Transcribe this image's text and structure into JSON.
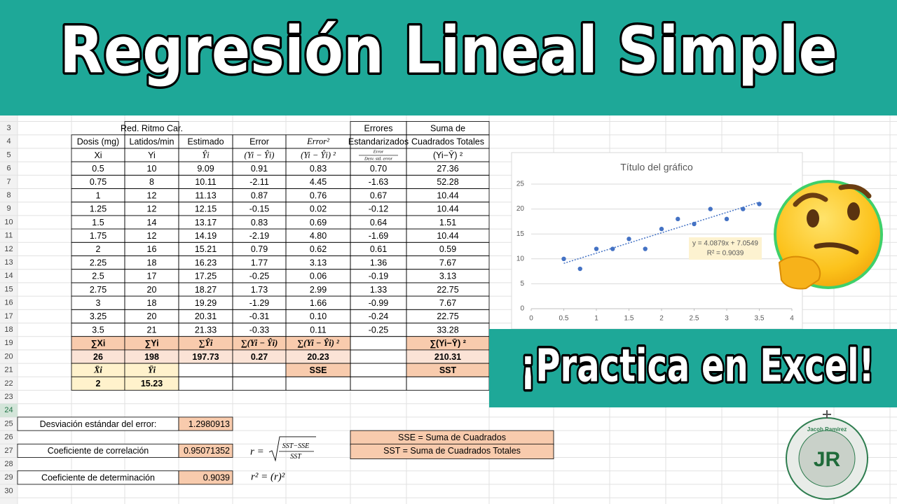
{
  "header": {
    "title": "Regresión Lineal Simple"
  },
  "banner": {
    "text": "¡Practica en Excel!"
  },
  "logo": {
    "name": "Jacob Ramírez",
    "initials": "JR"
  },
  "sheet": {
    "row_numbers": [
      "3",
      "4",
      "5",
      "6",
      "7",
      "8",
      "9",
      "10",
      "11",
      "12",
      "13",
      "14",
      "15",
      "16",
      "17",
      "18",
      "19",
      "20",
      "21",
      "22",
      "23",
      "24",
      "25",
      "26",
      "27",
      "28",
      "29",
      "30"
    ]
  },
  "table": {
    "header_rows": [
      [
        null,
        "Red. Ritmo Car.",
        null,
        null,
        null,
        "Errores",
        "Suma de"
      ],
      [
        "Dosis (mg)",
        "Latidos/min",
        "Estimado",
        "Error",
        "Error²",
        "Estandarizados",
        "Cuadrados Totales"
      ],
      [
        "Xi",
        "Yi",
        "Ŷi",
        "(Yi − Ŷi)",
        "(Yi − Ŷi) ²",
        {
          "numerator": "Error",
          "denominator": "Desv. std. error"
        },
        "(Yi−Ȳ) ²"
      ]
    ],
    "rows": [
      [
        "0.5",
        "10",
        "9.09",
        "0.91",
        "0.83",
        "0.70",
        "27.36"
      ],
      [
        "0.75",
        "8",
        "10.11",
        "-2.11",
        "4.45",
        "-1.63",
        "52.28"
      ],
      [
        "1",
        "12",
        "11.13",
        "0.87",
        "0.76",
        "0.67",
        "10.44"
      ],
      [
        "1.25",
        "12",
        "12.15",
        "-0.15",
        "0.02",
        "-0.12",
        "10.44"
      ],
      [
        "1.5",
        "14",
        "13.17",
        "0.83",
        "0.69",
        "0.64",
        "1.51"
      ],
      [
        "1.75",
        "12",
        "14.19",
        "-2.19",
        "4.80",
        "-1.69",
        "10.44"
      ],
      [
        "2",
        "16",
        "15.21",
        "0.79",
        "0.62",
        "0.61",
        "0.59"
      ],
      [
        "2.25",
        "18",
        "16.23",
        "1.77",
        "3.13",
        "1.36",
        "7.67"
      ],
      [
        "2.5",
        "17",
        "17.25",
        "-0.25",
        "0.06",
        "-0.19",
        "3.13"
      ],
      [
        "2.75",
        "20",
        "18.27",
        "1.73",
        "2.99",
        "1.33",
        "22.75"
      ],
      [
        "3",
        "18",
        "19.29",
        "-1.29",
        "1.66",
        "-0.99",
        "7.67"
      ],
      [
        "3.25",
        "20",
        "20.31",
        "-0.31",
        "0.10",
        "-0.24",
        "22.75"
      ],
      [
        "3.5",
        "21",
        "21.33",
        "-0.33",
        "0.11",
        "-0.25",
        "33.28"
      ]
    ],
    "sum_labels": [
      "∑Xi",
      "∑Yi",
      "∑Ŷi",
      "∑(Yi − Ŷi)",
      "∑(Yi − Ŷi) ²",
      null,
      "∑(Yi−Ȳ) ²"
    ],
    "sums": [
      "26",
      "198",
      "197.73",
      "0.27",
      "20.23",
      null,
      "210.31"
    ],
    "mean_labels": [
      "X̄i",
      "Ȳi",
      null,
      null,
      "SSE",
      null,
      "SST"
    ],
    "means": [
      "2",
      "15.23",
      null,
      null,
      null,
      null,
      null
    ]
  },
  "stats": [
    {
      "label": "Desviación estándar del error:",
      "value": "1.2980913"
    },
    {
      "label": "Coeficiente de correlación",
      "value": "0.95071352",
      "formula": {
        "lhs": "r =",
        "numerator": "SST−SSE",
        "denominator": "SST"
      }
    },
    {
      "label": "Coeficiente de determinación",
      "value": "0.9039",
      "formula_text": "r² = (r)²"
    }
  ],
  "definitions": [
    "SSE = Suma de Cuadrados",
    "SST = Suma de Cuadrados Totales"
  ],
  "chart_data": {
    "type": "scatter",
    "title": "Título del gráfico",
    "x": [
      0.5,
      0.75,
      1,
      1.25,
      1.5,
      1.75,
      2,
      2.25,
      2.5,
      2.75,
      3,
      3.25,
      3.5
    ],
    "values": [
      10,
      8,
      12,
      12,
      14,
      12,
      16,
      18,
      17,
      20,
      18,
      20,
      21
    ],
    "color": "#4472c4",
    "xlim": [
      0,
      4
    ],
    "xticks": [
      0,
      0.5,
      1,
      1.5,
      2,
      2.5,
      3,
      3.5,
      4
    ],
    "ylim": [
      0,
      25
    ],
    "yticks": [
      0,
      5,
      10,
      15,
      20,
      25
    ],
    "grid": true,
    "trendline": {
      "slope": 4.0879,
      "intercept": 7.0549,
      "label": "y = 4.0879x + 7.0549",
      "r2": 0.9039,
      "r2_label": "R² = 0.9039"
    }
  }
}
